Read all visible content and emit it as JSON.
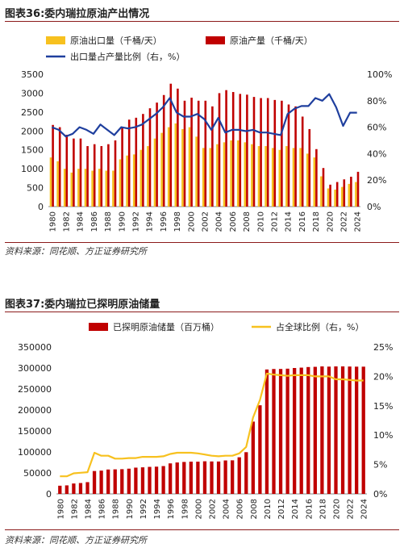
{
  "figure1": {
    "title": "图表36:委内瑞拉原油产出情况",
    "source": "资料来源：同花顺、方正证券研究所",
    "chart_data": {
      "type": "bar",
      "categories": [
        "1980",
        "1981",
        "1982",
        "1983",
        "1984",
        "1985",
        "1986",
        "1987",
        "1988",
        "1989",
        "1990",
        "1991",
        "1992",
        "1993",
        "1994",
        "1995",
        "1996",
        "1997",
        "1998",
        "1999",
        "2000",
        "2001",
        "2002",
        "2003",
        "2004",
        "2005",
        "2006",
        "2007",
        "2008",
        "2009",
        "2010",
        "2011",
        "2012",
        "2013",
        "2014",
        "2015",
        "2016",
        "2017",
        "2018",
        "2019",
        "2020",
        "2021",
        "2022",
        "2023",
        "2024"
      ],
      "tick_labels": [
        "1980",
        "1982",
        "1984",
        "1986",
        "1988",
        "1990",
        "1992",
        "1994",
        "1996",
        "1998",
        "2000",
        "2002",
        "2004",
        "2006",
        "2008",
        "2010",
        "2012",
        "2014",
        "2016",
        "2018",
        "2020",
        "2022",
        "2024"
      ],
      "series": [
        {
          "name": "原油出口量（千桶/天）",
          "color": "#f7c11f",
          "axis": "left",
          "values": [
            1300,
            1200,
            1000,
            900,
            1000,
            1000,
            950,
            1000,
            950,
            950,
            1250,
            1350,
            1380,
            1500,
            1600,
            1800,
            1950,
            2100,
            2200,
            2050,
            2100,
            1850,
            1550,
            1550,
            1650,
            1700,
            1750,
            1750,
            1700,
            1650,
            1600,
            1600,
            1550,
            1500,
            1600,
            1550,
            1550,
            1400,
            1300,
            800,
            480,
            450,
            520,
            600,
            650
          ]
        },
        {
          "name": "原油产量（千桶/天）",
          "color": "#c00000",
          "axis": "left",
          "values": [
            2160,
            2100,
            1900,
            1800,
            1800,
            1600,
            1650,
            1600,
            1650,
            1750,
            2100,
            2300,
            2350,
            2450,
            2600,
            2750,
            2950,
            3250,
            3120,
            2800,
            2880,
            2800,
            2800,
            2650,
            3000,
            3080,
            3030,
            2980,
            2960,
            2900,
            2870,
            2870,
            2820,
            2800,
            2700,
            2650,
            2380,
            2050,
            1520,
            1020,
            580,
            650,
            720,
            790,
            920
          ]
        },
        {
          "name": "出口量占产量比例（右，%）",
          "color": "#1f3f9e",
          "axis": "right",
          "type": "line",
          "values": [
            60,
            58,
            53,
            55,
            60,
            58,
            55,
            62,
            58,
            54,
            60,
            59,
            60,
            62,
            66,
            70,
            75,
            82,
            71,
            68,
            68,
            70,
            66,
            58,
            67,
            56,
            58,
            58,
            57,
            58,
            56,
            56,
            55,
            54,
            70,
            74,
            76,
            76,
            82,
            80,
            85,
            75,
            61,
            71,
            71
          ]
        }
      ],
      "left_axis": {
        "min": 0,
        "max": 3500,
        "ticks": [
          0,
          500,
          1000,
          1500,
          2000,
          2500,
          3000,
          3500
        ]
      },
      "right_axis": {
        "min": 0,
        "max": 100,
        "ticks": [
          "0%",
          "20%",
          "40%",
          "60%",
          "80%",
          "100%"
        ]
      },
      "legend": "top-left"
    }
  },
  "figure2": {
    "title": "图表37:委内瑞拉已探明原油储量",
    "source": "资料来源：同花顺、方正证券研究所",
    "chart_data": {
      "type": "bar",
      "categories": [
        "1980",
        "1981",
        "1982",
        "1983",
        "1984",
        "1985",
        "1986",
        "1987",
        "1988",
        "1989",
        "1990",
        "1991",
        "1992",
        "1993",
        "1994",
        "1995",
        "1996",
        "1997",
        "1998",
        "1999",
        "2000",
        "2001",
        "2002",
        "2003",
        "2004",
        "2005",
        "2006",
        "2007",
        "2008",
        "2009",
        "2010",
        "2011",
        "2012",
        "2013",
        "2014",
        "2015",
        "2016",
        "2017",
        "2018",
        "2019",
        "2020",
        "2021",
        "2022",
        "2023",
        "2024"
      ],
      "tick_labels": [
        "1980",
        "1982",
        "1984",
        "1986",
        "1988",
        "1990",
        "1992",
        "1994",
        "1996",
        "1998",
        "2000",
        "2002",
        "2004",
        "2006",
        "2008",
        "2010",
        "2012",
        "2014",
        "2016",
        "2018",
        "2020",
        "2022",
        "2024"
      ],
      "series": [
        {
          "name": "已探明原油储量（百万桶）",
          "color": "#c00000",
          "axis": "left",
          "values": [
            19500,
            20300,
            24800,
            25900,
            28000,
            54500,
            55500,
            58100,
            58500,
            58900,
            60100,
            62600,
            63300,
            64400,
            64900,
            66300,
            72700,
            74900,
            76100,
            76800,
            76800,
            77700,
            77300,
            77200,
            79700,
            80000,
            87300,
            99400,
            172300,
            211200,
            296500,
            297600,
            297700,
            298400,
            300000,
            300900,
            302300,
            302800,
            303800,
            303300,
            303800,
            303800,
            303500,
            303200,
            303200
          ]
        },
        {
          "name": "占全球比例（右，%）",
          "color": "#f7c11f",
          "axis": "right",
          "type": "line",
          "values": [
            3.0,
            3.0,
            3.5,
            3.6,
            3.7,
            7.0,
            6.5,
            6.5,
            6.0,
            6.0,
            6.1,
            6.1,
            6.3,
            6.3,
            6.3,
            6.4,
            6.8,
            7.0,
            7.0,
            7.0,
            6.9,
            6.7,
            6.5,
            6.4,
            6.5,
            6.5,
            6.9,
            8.0,
            13.0,
            16.0,
            20.5,
            20.3,
            20.2,
            20.1,
            20.2,
            20.2,
            20.2,
            20.0,
            20.0,
            20.0,
            19.5,
            19.5,
            19.4,
            19.3,
            19.3
          ]
        }
      ],
      "left_axis": {
        "min": 0,
        "max": 350000,
        "ticks": [
          0,
          50000,
          100000,
          150000,
          200000,
          250000,
          300000,
          350000
        ]
      },
      "right_axis": {
        "min": 0,
        "max": 25,
        "ticks": [
          "0%",
          "5%",
          "10%",
          "15%",
          "20%",
          "25%"
        ]
      },
      "legend": "top"
    }
  }
}
